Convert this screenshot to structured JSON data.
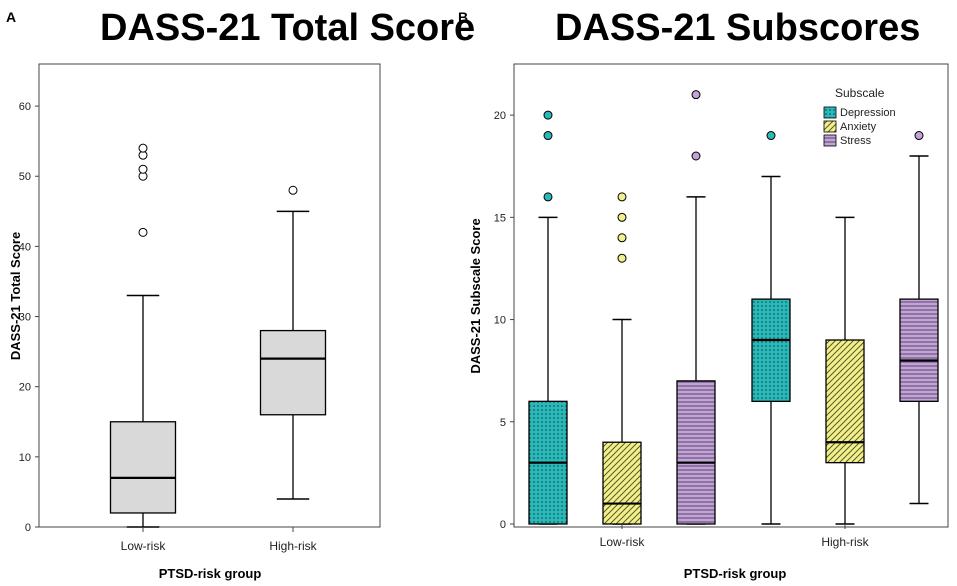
{
  "chart_data": [
    {
      "panel": "A",
      "type": "boxplot",
      "title": "DASS-21 Total Score",
      "xlabel": "PTSD-risk group",
      "ylabel": "DASS-21 Total Score",
      "ylim": [
        0,
        66
      ],
      "yticks": [
        0,
        10,
        20,
        30,
        40,
        50,
        60
      ],
      "categories": [
        "Low-risk",
        "High-risk"
      ],
      "color": "#d9d9d9",
      "boxes": [
        {
          "category": "Low-risk",
          "whisker_low": 0,
          "q1": 2,
          "median": 7,
          "q3": 15,
          "whisker_high": 33,
          "outliers": [
            42,
            50,
            51,
            53,
            54
          ]
        },
        {
          "category": "High-risk",
          "whisker_low": 4,
          "q1": 16,
          "median": 24,
          "q3": 28,
          "whisker_high": 45,
          "outliers": [
            48
          ]
        }
      ]
    },
    {
      "panel": "B",
      "type": "boxplot",
      "title": "DASS-21 Subscores",
      "xlabel": "PTSD-risk group",
      "ylabel": "DASS-21 Subscale Score",
      "ylim": [
        0,
        22.5
      ],
      "yticks": [
        0,
        5,
        10,
        15,
        20
      ],
      "categories": [
        "Low-risk",
        "High-risk"
      ],
      "legend": {
        "title": "Subscale",
        "position": "top-right",
        "entries": [
          {
            "name": "Depression",
            "color": "#2bb8b8",
            "pattern": "dots"
          },
          {
            "name": "Anxiety",
            "color": "#f2f08a",
            "pattern": "diagonal"
          },
          {
            "name": "Stress",
            "color": "#c3a3d6",
            "pattern": "horizontal"
          }
        ]
      },
      "series": [
        {
          "name": "Depression",
          "boxes": [
            {
              "category": "Low-risk",
              "whisker_low": 0,
              "q1": 0,
              "median": 3,
              "q3": 6,
              "whisker_high": 15,
              "outliers": [
                16,
                19,
                20
              ]
            },
            {
              "category": "High-risk",
              "whisker_low": 0,
              "q1": 6,
              "median": 9,
              "q3": 11,
              "whisker_high": 17,
              "outliers": [
                19
              ]
            }
          ]
        },
        {
          "name": "Anxiety",
          "boxes": [
            {
              "category": "Low-risk",
              "whisker_low": 0,
              "q1": 0,
              "median": 1,
              "q3": 4,
              "whisker_high": 10,
              "outliers": [
                13,
                14,
                15,
                16
              ]
            },
            {
              "category": "High-risk",
              "whisker_low": 0,
              "q1": 3,
              "median": 4,
              "q3": 9,
              "whisker_high": 15,
              "outliers": []
            }
          ]
        },
        {
          "name": "Stress",
          "boxes": [
            {
              "category": "Low-risk",
              "whisker_low": 0,
              "q1": 0,
              "median": 3,
              "q3": 7,
              "whisker_high": 16,
              "outliers": [
                18,
                21
              ]
            },
            {
              "category": "High-risk",
              "whisker_low": 1,
              "q1": 6,
              "median": 8,
              "q3": 11,
              "whisker_high": 18,
              "outliers": [
                19
              ]
            }
          ]
        }
      ]
    }
  ]
}
